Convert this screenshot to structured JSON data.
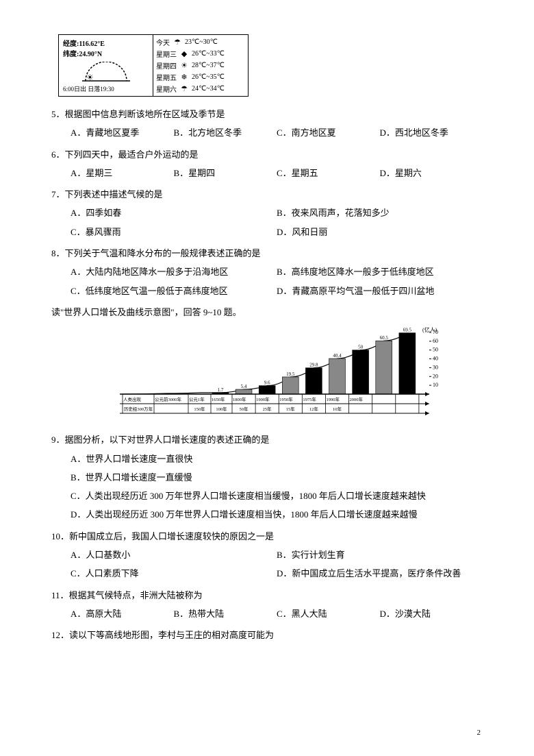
{
  "weather": {
    "longitude": "经度:116.62°E",
    "latitude": "纬度:24.90°N",
    "sunrise_sunset": "6:00日出 日落19:30",
    "rows": [
      {
        "day": "今天",
        "icon": "☂",
        "temp": "23℃~30℃"
      },
      {
        "day": "星期三",
        "icon": "◆",
        "temp": "26℃~33℃"
      },
      {
        "day": "星期四",
        "icon": "☀",
        "temp": "28℃~37℃"
      },
      {
        "day": "星期五",
        "icon": "❄",
        "temp": "26℃~35℃"
      },
      {
        "day": "星期六",
        "icon": "☂",
        "temp": "24℃~34℃"
      }
    ]
  },
  "q5": {
    "text": "5．根据图中信息判断该地所在区域及季节是",
    "a": "A．青藏地区夏季",
    "b": "B．北方地区冬季",
    "c": "C．南方地区夏",
    "d": "D．西北地区冬季"
  },
  "q6": {
    "text": "6．下列四天中，最适合户外运动的是",
    "a": "A．星期三",
    "b": "B．星期四",
    "c": "C．星期五",
    "d": "D．星期六"
  },
  "q7": {
    "text": "7．下列表述中描述气候的是",
    "a": "A．四季如春",
    "b": "B．夜来风雨声，花落知多少",
    "c": "C．暴风骤雨",
    "d": "D．风和日丽"
  },
  "q8": {
    "text": "8．下列关于气温和降水分布的一般规律表述正确的是",
    "a": "A．大陆内陆地区降水一般多于沿海地区",
    "b": "B．高纬度地区降水一般多于低纬度地区",
    "c": "C．低纬度地区气温一般低于高纬度地区",
    "d": "D．青藏高原平均气温一般低于四川盆地"
  },
  "intro910": "读\"世界人口增长及曲线示意图\"，回答 9~10 题。",
  "chart": {
    "ylabel": "(亿人)",
    "ymax": 70,
    "ytick_step": 10,
    "bar_values": [
      1.7,
      5.4,
      9.6,
      19.5,
      29.8,
      40.4,
      50,
      60.5,
      69.5
    ],
    "x_era_labels": [
      "人类出现",
      "公元前3000年",
      "公元1年",
      "1650年",
      "1800年",
      "1900年",
      "1950年",
      "1975年",
      "1990年",
      "2000年"
    ],
    "interval_labels": [
      "",
      "历史经300万年",
      "",
      "150年",
      "100年",
      "50年",
      "25年",
      "15年",
      "12年",
      "10年"
    ],
    "colors": {
      "bar_fill": "#000000",
      "axis": "#000000",
      "background": "#ffffff",
      "text": "#000000"
    },
    "font_size": 8
  },
  "q9": {
    "text": "9．据图分析，以下对世界人口增长速度的表述正确的是",
    "a": "A．世界人口增长速度一直很快",
    "b": "B．世界人口增长速度一直缓慢",
    "c": "C．人类出现经历近 300 万年世界人口增长速度相当缓慢，1800 年后人口增长速度越来越快",
    "d": "D．人类出现经历近 300 万年世界人口增长速度相当快，1800 年后人口增长速度越来越慢"
  },
  "q10": {
    "text": "10．新中国成立后，我国人口增长速度较快的原因之一是",
    "a": "A．人口基数小",
    "b": "B．实行计划生育",
    "c": "C．人口素质下降",
    "d": "D．新中国成立后生活水平提高，医疗条件改善"
  },
  "q11": {
    "text": "11．根据其气候特点，非洲大陆被称为",
    "a": "A．高原大陆",
    "b": "B．热带大陆",
    "c": "C．黑人大陆",
    "d": "D．沙漠大陆"
  },
  "q12": {
    "text": "12．读以下等高线地形图，李村与王庄的相对高度可能为"
  },
  "page_number": "2"
}
